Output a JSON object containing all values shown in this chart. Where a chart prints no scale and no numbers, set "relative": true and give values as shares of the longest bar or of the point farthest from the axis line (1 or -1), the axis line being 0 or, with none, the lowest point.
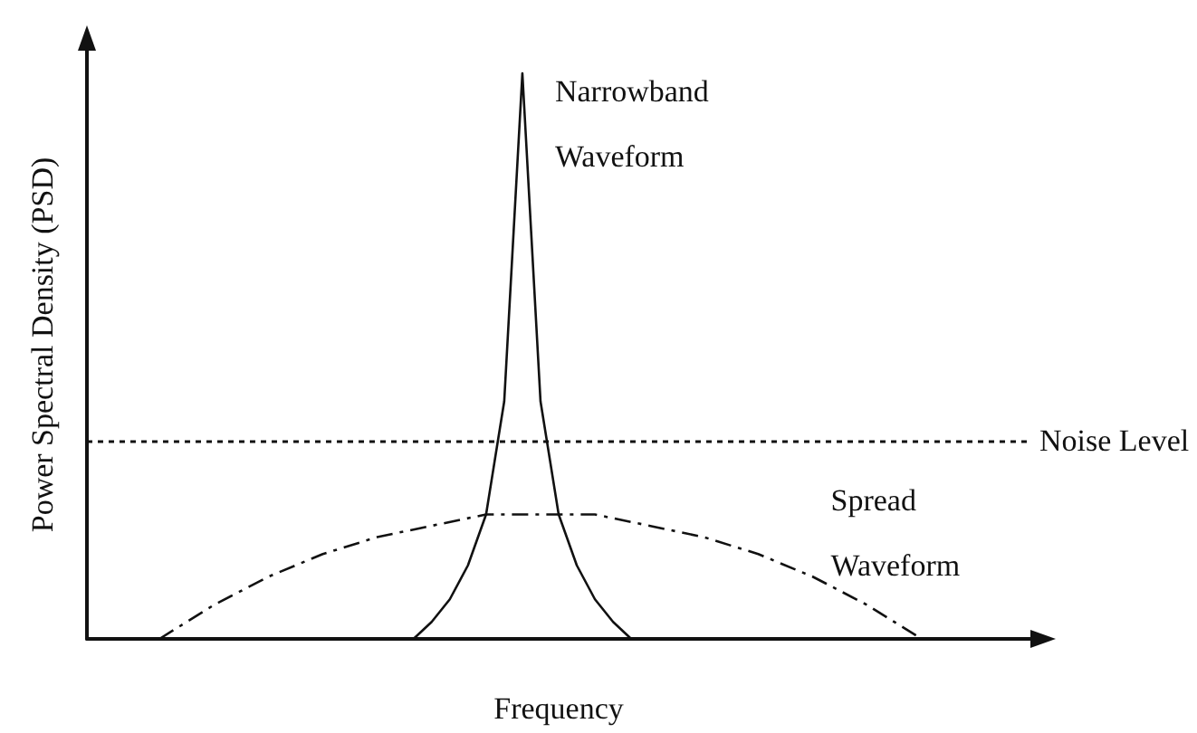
{
  "chart_data": {
    "type": "line",
    "relative": true,
    "xlabel": "Frequency",
    "ylabel": "Power Spectral Density (PSD)",
    "marker": "none",
    "grid": false,
    "legend": false,
    "categories": [
      null,
      null,
      null,
      null,
      null,
      null,
      null,
      null,
      null,
      null,
      null,
      null,
      null,
      null,
      null,
      null,
      null,
      null,
      null,
      null,
      null,
      null,
      null,
      null,
      null,
      null,
      null,
      null,
      null,
      null,
      null,
      null,
      null,
      null,
      null,
      null,
      null,
      null,
      null,
      null,
      null,
      null,
      null,
      null,
      null,
      null,
      null,
      null,
      null,
      null,
      null,
      null,
      null
    ],
    "series": [
      {
        "name": "Narrowband Waveform",
        "color": "#111111",
        "line_style": "solid",
        "values": [
          null,
          null,
          null,
          null,
          null,
          null,
          null,
          null,
          null,
          null,
          null,
          null,
          null,
          null,
          null,
          null,
          null,
          null,
          0,
          0.03,
          0.07,
          0.13,
          0.22,
          0.42,
          1,
          0.42,
          0.22,
          0.13,
          0.07,
          0.03,
          0,
          null,
          null,
          null,
          null,
          null,
          null,
          null,
          null,
          null,
          null,
          null,
          null,
          null,
          null,
          null,
          null,
          null,
          null,
          null,
          null,
          null,
          null
        ]
      },
      {
        "name": "Spread Waveform",
        "color": "#111111",
        "line_style": "dashed",
        "values": [
          null,
          null,
          null,
          null,
          0,
          null,
          null,
          0.06,
          null,
          null,
          0.11,
          null,
          null,
          0.15,
          null,
          null,
          0.18,
          null,
          null,
          0.2,
          null,
          null,
          0.22,
          null,
          null,
          0.22,
          null,
          null,
          0.22,
          null,
          null,
          0.2,
          null,
          null,
          0.18,
          null,
          null,
          0.15,
          null,
          null,
          0.11,
          null,
          null,
          0.06,
          null,
          null,
          0,
          null,
          null,
          null,
          null,
          null,
          null
        ]
      }
    ],
    "ref_lines": [
      {
        "axis": "y",
        "value": 0.35,
        "label": "Noise Level",
        "color": "#111111",
        "line_style": "dotted"
      }
    ]
  }
}
